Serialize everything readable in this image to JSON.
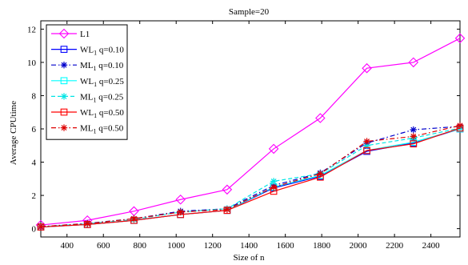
{
  "chart_data": {
    "type": "line",
    "title": "Sample=20",
    "xlabel": "Size of n",
    "ylabel": "Average CPUtime",
    "xlim": [
      256,
      2560
    ],
    "ylim": [
      -0.5,
      12.5
    ],
    "xticks": [
      400,
      600,
      800,
      1000,
      1200,
      1400,
      1600,
      1800,
      2000,
      2200,
      2400
    ],
    "yticks": [
      0,
      2,
      4,
      6,
      8,
      10,
      12
    ],
    "grid": false,
    "legend_position": "top-left",
    "x": [
      256,
      512,
      768,
      1024,
      1280,
      1536,
      1792,
      2048,
      2304,
      2560
    ],
    "series": [
      {
        "name": "L1",
        "name_sub": "",
        "name_suffix": "",
        "color": "#ff00ff",
        "dash": "solid",
        "marker": "diamond",
        "values": [
          0.22,
          0.5,
          1.05,
          1.75,
          2.35,
          4.8,
          6.65,
          9.65,
          10.0,
          11.45
        ]
      },
      {
        "name": "WL",
        "name_sub": "1",
        "name_suffix": " q=0.10",
        "color": "#0000ff",
        "dash": "solid",
        "marker": "square",
        "values": [
          0.1,
          0.25,
          0.5,
          0.85,
          1.1,
          2.45,
          3.15,
          4.65,
          5.15,
          6.0
        ]
      },
      {
        "name": "ML",
        "name_sub": "1",
        "name_suffix": " q=0.10",
        "color": "#0000cc",
        "dash": "dashdot",
        "marker": "star",
        "values": [
          0.12,
          0.32,
          0.6,
          1.05,
          1.2,
          2.6,
          3.35,
          5.15,
          5.95,
          6.15
        ]
      },
      {
        "name": "WL",
        "name_sub": "1",
        "name_suffix": " q=0.25",
        "color": "#00ffff",
        "dash": "solid",
        "marker": "square",
        "values": [
          0.1,
          0.25,
          0.5,
          0.85,
          1.1,
          2.5,
          3.2,
          4.7,
          5.2,
          6.0
        ]
      },
      {
        "name": "ML",
        "name_sub": "1",
        "name_suffix": " q=0.25",
        "color": "#00e5e5",
        "dash": "dashed",
        "marker": "star",
        "values": [
          0.12,
          0.3,
          0.55,
          1.0,
          1.2,
          2.85,
          3.3,
          5.0,
          5.45,
          6.05
        ]
      },
      {
        "name": "WL",
        "name_sub": "1",
        "name_suffix": " q=0.50",
        "color": "#ff0000",
        "dash": "solid",
        "marker": "square",
        "values": [
          0.1,
          0.25,
          0.5,
          0.85,
          1.1,
          2.25,
          3.1,
          4.7,
          5.1,
          6.05
        ]
      },
      {
        "name": "ML",
        "name_sub": "1",
        "name_suffix": " q=0.50",
        "color": "#dd0000",
        "dash": "dashdot",
        "marker": "star",
        "values": [
          0.12,
          0.3,
          0.6,
          1.0,
          1.15,
          2.5,
          3.3,
          5.25,
          5.55,
          6.2
        ]
      }
    ]
  }
}
